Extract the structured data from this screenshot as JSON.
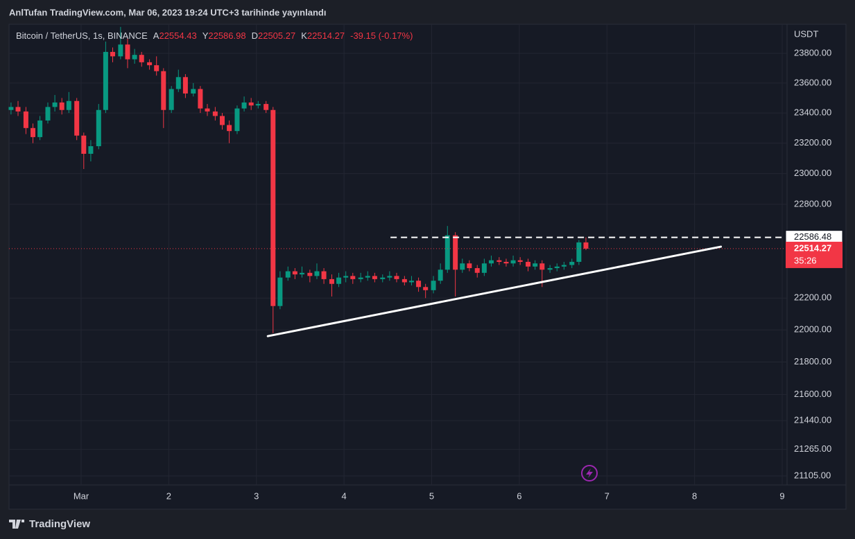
{
  "header": {
    "publisher": "AnlTufan TradingView.com, Mar 06, 2023 19:24 UTC+3 tarihinde yayınlandı",
    "brand": "TradingView"
  },
  "chart_data": {
    "type": "candlestick",
    "symbol": "Bitcoin / TetherUS, 1s, BINANCE",
    "ohlc_labels": [
      "A",
      "Y",
      "D",
      "K"
    ],
    "change": "-39.15 (-0.17%)",
    "currency": "USDT",
    "countdown": "35:26",
    "log": true,
    "grid": true,
    "up_color": "#089981",
    "down_color": "#f23645",
    "x": [
      0.2,
      0.28,
      0.37,
      0.45,
      0.53,
      0.62,
      0.7,
      0.78,
      0.86,
      0.95,
      1.03,
      1.11,
      1.2,
      1.28,
      1.36,
      1.45,
      1.53,
      1.61,
      1.69,
      1.78,
      1.86,
      1.94,
      2.03,
      2.11,
      2.19,
      2.28,
      2.36,
      2.44,
      2.53,
      2.61,
      2.69,
      2.78,
      2.86,
      2.94,
      3.02,
      3.11,
      3.19,
      3.27,
      3.36,
      3.44,
      3.52,
      3.61,
      3.69,
      3.77,
      3.86,
      3.94,
      4.02,
      4.1,
      4.19,
      4.27,
      4.35,
      4.44,
      4.52,
      4.6,
      4.69,
      4.77,
      4.85,
      4.93,
      5.02,
      5.1,
      5.18,
      5.27,
      5.35,
      5.43,
      5.52,
      5.6,
      5.68,
      5.77,
      5.85,
      5.93,
      6.01,
      6.1,
      6.18,
      6.26,
      6.35,
      6.43,
      6.51,
      6.6,
      6.68,
      6.76
    ],
    "open": [
      23420,
      23440,
      23410,
      23300,
      23240,
      23350,
      23440,
      23470,
      23420,
      23480,
      23250,
      23130,
      23180,
      23420,
      23810,
      23780,
      23860,
      23760,
      23790,
      23740,
      23720,
      23680,
      23420,
      23560,
      23640,
      23530,
      23560,
      23430,
      23410,
      23380,
      23320,
      23280,
      23430,
      23470,
      23450,
      23460,
      23420,
      22150,
      22330,
      22370,
      22350,
      22360,
      22340,
      22370,
      22320,
      22290,
      22330,
      22340,
      22320,
      22330,
      22340,
      22320,
      22330,
      22340,
      22320,
      22300,
      22310,
      22270,
      22250,
      22310,
      22380,
      22600,
      22380,
      22420,
      22390,
      22360,
      22420,
      22440,
      22430,
      22420,
      22440,
      22430,
      22400,
      22420,
      22380,
      22390,
      22400,
      22410,
      22430,
      22554.43
    ],
    "high": [
      23470,
      23480,
      23440,
      23330,
      23380,
      23470,
      23520,
      23500,
      23540,
      23500,
      23270,
      23220,
      23460,
      23880,
      23840,
      23980,
      23900,
      23830,
      23810,
      23760,
      23780,
      23700,
      23580,
      23690,
      23660,
      23600,
      23580,
      23460,
      23440,
      23400,
      23350,
      23450,
      23510,
      23500,
      23480,
      23480,
      23440,
      22370,
      22400,
      22390,
      22400,
      22380,
      22420,
      22390,
      22350,
      22360,
      22370,
      22360,
      22360,
      22370,
      22360,
      22350,
      22370,
      22360,
      22340,
      22340,
      22330,
      22290,
      22340,
      22420,
      22660,
      22620,
      22450,
      22440,
      22410,
      22450,
      22470,
      22460,
      22450,
      22470,
      22460,
      22450,
      22440,
      22440,
      22410,
      22420,
      22430,
      22450,
      22570,
      22586.98
    ],
    "low": [
      23390,
      23380,
      23260,
      23200,
      23220,
      23330,
      23410,
      23390,
      23400,
      23220,
      23030,
      23080,
      23160,
      23400,
      23740,
      23760,
      23700,
      23730,
      23710,
      23690,
      23650,
      23300,
      23400,
      23540,
      23500,
      23510,
      23400,
      23380,
      23350,
      23290,
      23200,
      23260,
      23410,
      23420,
      23430,
      23400,
      21980,
      22130,
      22310,
      22320,
      22330,
      22300,
      22320,
      22290,
      22210,
      22270,
      22300,
      22290,
      22300,
      22310,
      22300,
      22300,
      22310,
      22300,
      22280,
      22280,
      22240,
      22200,
      22230,
      22290,
      22360,
      22210,
      22360,
      22370,
      22330,
      22340,
      22400,
      22410,
      22400,
      22400,
      22410,
      22370,
      22380,
      22270,
      22360,
      22370,
      22380,
      22390,
      22410,
      22505.27
    ],
    "close": [
      23440,
      23410,
      23300,
      23240,
      23350,
      23440,
      23470,
      23420,
      23480,
      23250,
      23130,
      23180,
      23420,
      23810,
      23780,
      23860,
      23760,
      23790,
      23740,
      23720,
      23680,
      23420,
      23560,
      23640,
      23530,
      23560,
      23430,
      23410,
      23380,
      23320,
      23280,
      23430,
      23470,
      23450,
      23460,
      23420,
      22150,
      22330,
      22370,
      22350,
      22360,
      22340,
      22370,
      22320,
      22290,
      22330,
      22340,
      22320,
      22330,
      22340,
      22320,
      22330,
      22340,
      22320,
      22300,
      22310,
      22270,
      22250,
      22310,
      22380,
      22600,
      22380,
      22420,
      22390,
      22360,
      22420,
      22440,
      22430,
      22420,
      22440,
      22430,
      22400,
      22420,
      22380,
      22390,
      22400,
      22410,
      22430,
      22554.43,
      22514.27
    ],
    "resistance": {
      "value": 22586.48,
      "x_start": 4.53
    },
    "trendline": {
      "x": [
        3.13,
        8.3
      ],
      "y": [
        21961,
        22527
      ]
    },
    "xlim": [
      0.177,
      9.055
    ],
    "xticks": [
      {
        "value": 1,
        "label": "Mar"
      },
      2,
      3,
      4,
      5,
      6,
      7,
      8,
      9
    ],
    "ylim": [
      21051,
      23998
    ],
    "yticks": [
      {
        "value": 23800,
        "label": "23800.00"
      },
      {
        "value": 23600,
        "label": "23600.00"
      },
      {
        "value": 23400,
        "label": "23400.00"
      },
      {
        "value": 23200,
        "label": "23200.00"
      },
      {
        "value": 23000,
        "label": "23000.00"
      },
      {
        "value": 22800,
        "label": "22800.00"
      },
      {
        "value": 22200,
        "label": "22200.00"
      },
      {
        "value": 22000,
        "label": "22000.00"
      },
      {
        "value": 21800,
        "label": "21800.00"
      },
      {
        "value": 21600,
        "label": "21600.00"
      },
      {
        "value": 21440,
        "label": "21440.00"
      },
      {
        "value": 21265,
        "label": "21265.00"
      },
      {
        "value": 21105,
        "label": "21105.00"
      }
    ]
  }
}
